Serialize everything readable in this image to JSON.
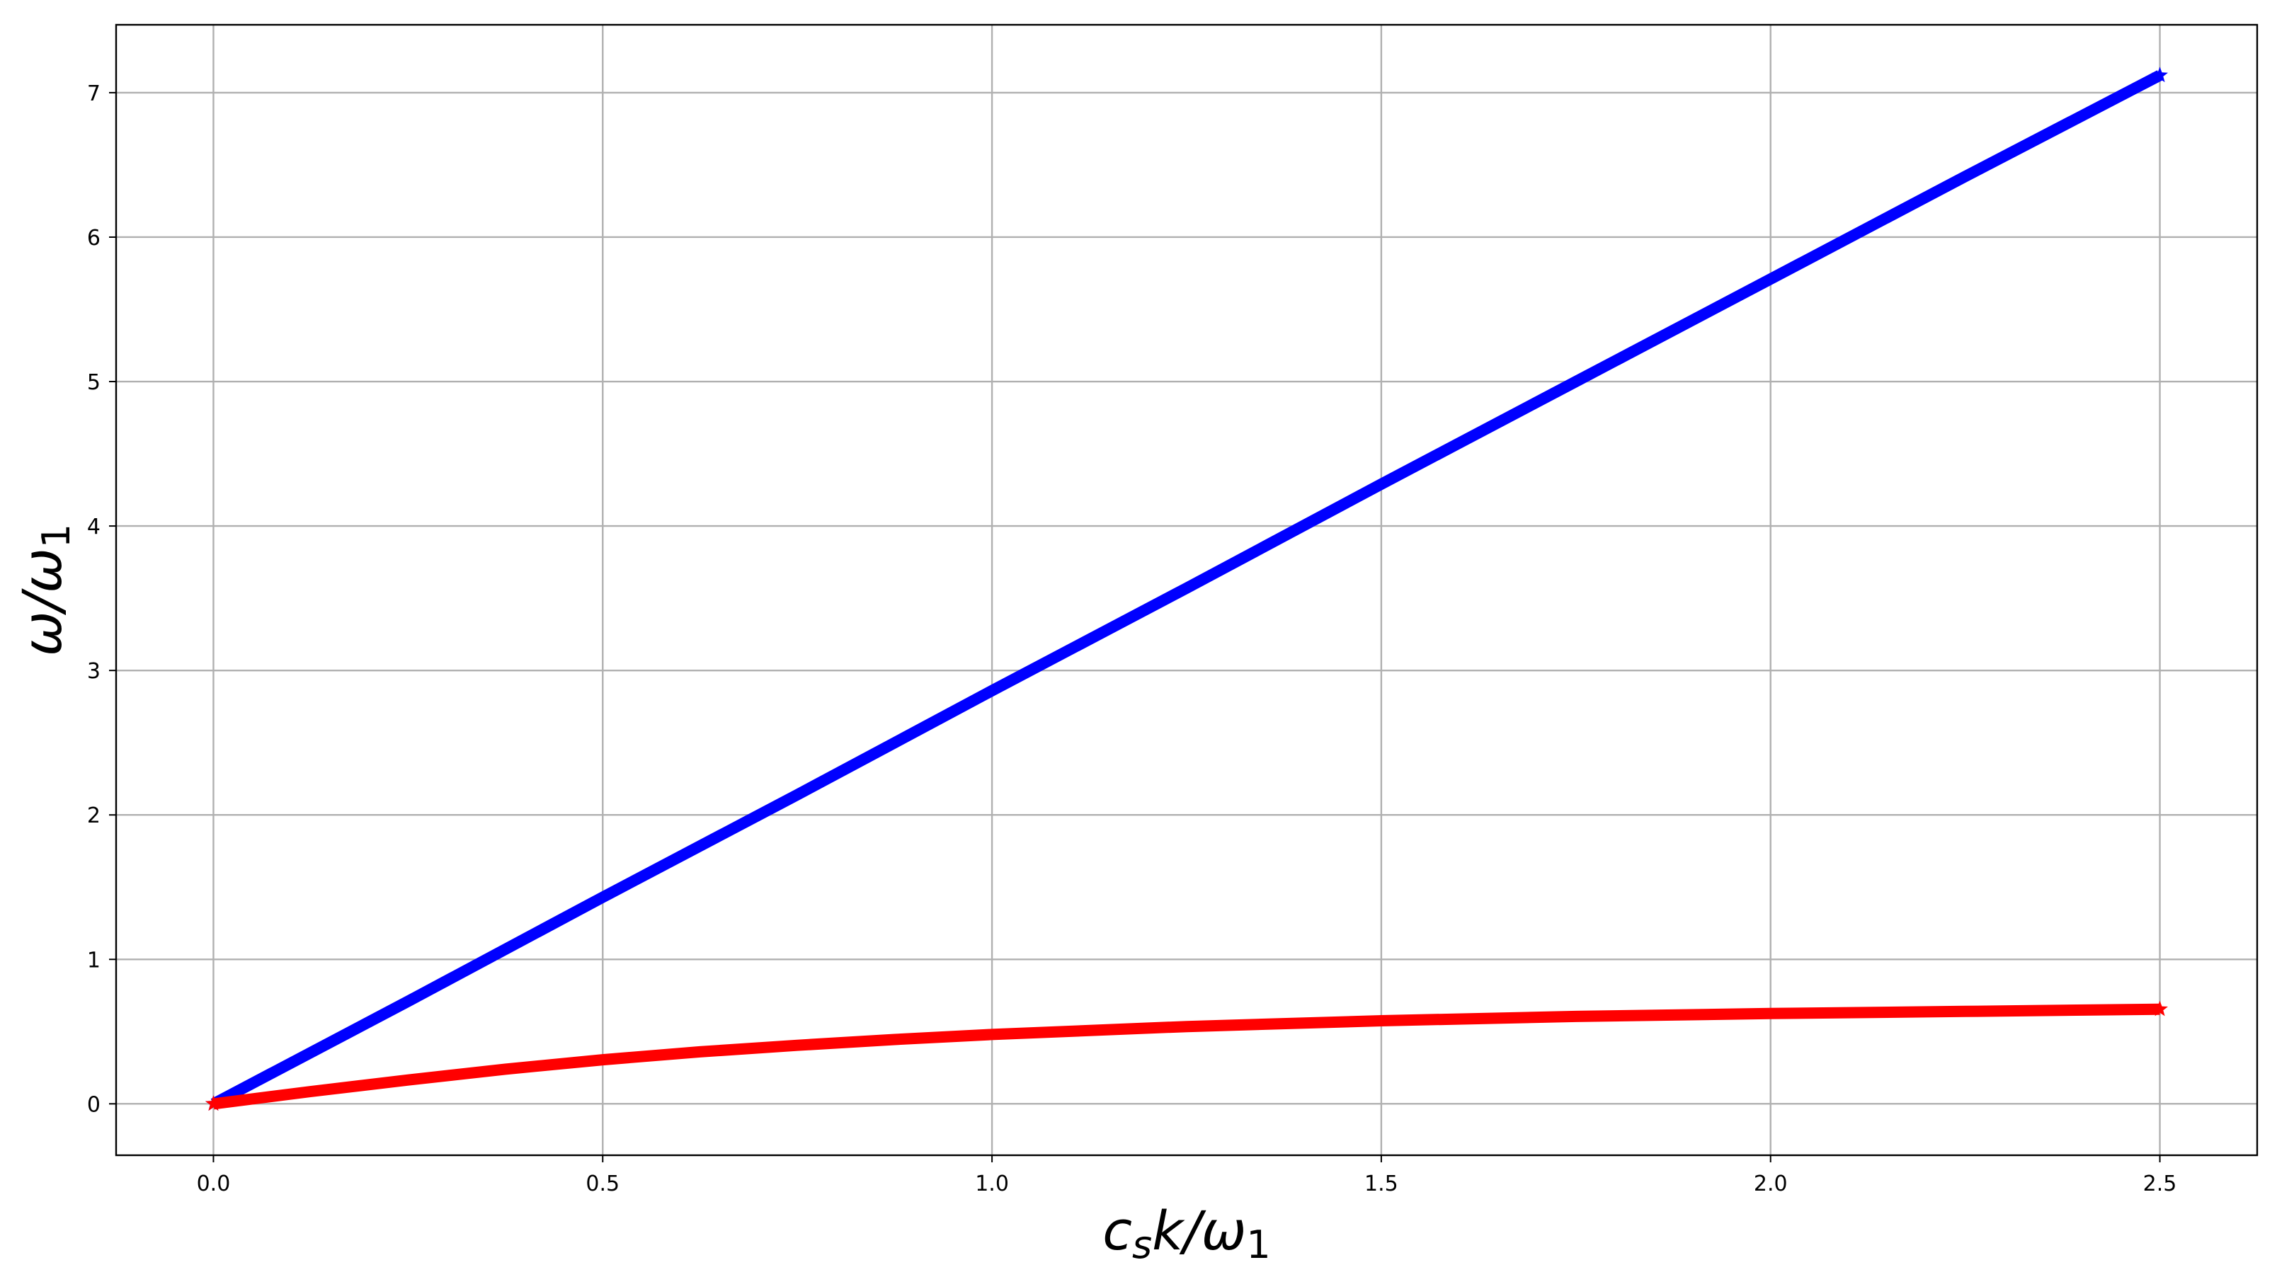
{
  "chart_data": {
    "type": "line",
    "title": "",
    "xlabel": {
      "base": "c",
      "sub1": "s",
      "mid": "k/ω",
      "sub2": "1"
    },
    "ylabel": {
      "base": "ω/ω",
      "sub": "1"
    },
    "xlim": [
      -0.125,
      2.625
    ],
    "ylim": [
      -0.356,
      7.47
    ],
    "grid": true,
    "x_ticks": [
      0.0,
      0.5,
      1.0,
      1.5,
      2.0,
      2.5
    ],
    "x_tick_labels": [
      "0.0",
      "0.5",
      "1.0",
      "1.5",
      "2.0",
      "2.5"
    ],
    "y_ticks": [
      0,
      1,
      2,
      3,
      4,
      5,
      6,
      7
    ],
    "y_tick_labels": [
      "0",
      "1",
      "2",
      "3",
      "4",
      "5",
      "6",
      "7"
    ],
    "series": [
      {
        "color": "#0000ff",
        "marker": "star",
        "x": [
          0.0,
          0.25,
          0.5,
          0.75,
          1.0,
          1.25,
          1.5,
          1.75,
          2.0,
          2.25,
          2.5
        ],
        "y": [
          0.0,
          0.71,
          1.43,
          2.14,
          2.86,
          3.57,
          4.29,
          5.0,
          5.71,
          6.42,
          7.12
        ]
      },
      {
        "color": "#ff0000",
        "marker": "star",
        "x": [
          0.0,
          0.125,
          0.25,
          0.375,
          0.5,
          0.625,
          0.75,
          0.875,
          1.0,
          1.25,
          1.5,
          1.75,
          2.0,
          2.25,
          2.5
        ],
        "y": [
          0.0,
          0.085,
          0.165,
          0.24,
          0.305,
          0.36,
          0.405,
          0.445,
          0.48,
          0.535,
          0.575,
          0.605,
          0.625,
          0.64,
          0.655
        ]
      }
    ]
  }
}
